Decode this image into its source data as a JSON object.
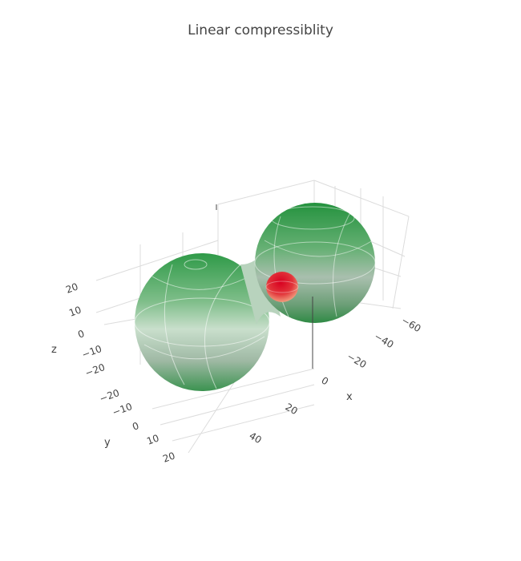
{
  "title": "Linear compressiblity",
  "chart_data": {
    "type": "surface3d",
    "title": "Linear compressiblity",
    "axes": {
      "x": {
        "label": "x",
        "ticks": [
          "−60",
          "−40",
          "−20",
          "0",
          "20",
          "40"
        ],
        "range": [
          -60,
          50
        ]
      },
      "y": {
        "label": "y",
        "ticks": [
          "−20",
          "−10",
          "0",
          "10",
          "20"
        ],
        "range": [
          -25,
          25
        ]
      },
      "z": {
        "label": "z",
        "ticks": [
          "20",
          "10",
          "0",
          "−10",
          "−20"
        ],
        "range": [
          -25,
          25
        ]
      }
    },
    "grid": true,
    "legend": "none",
    "series": [
      {
        "name": "",
        "color": "#2e9a45",
        "shape": "two-lobe dumbbell surface"
      },
      {
        "name": "",
        "color": "#e0202a",
        "shape": "small ellipsoid near origin"
      }
    ]
  }
}
